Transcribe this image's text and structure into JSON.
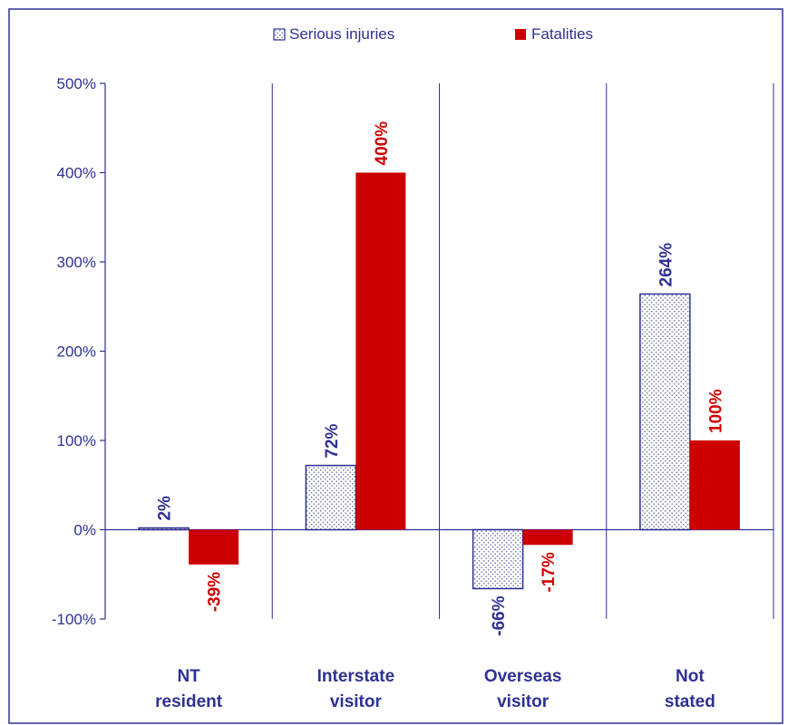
{
  "chart_data": {
    "type": "bar",
    "categories": [
      [
        "NT",
        "resident"
      ],
      [
        "Interstate",
        "visitor"
      ],
      [
        "Overseas",
        "visitor"
      ],
      [
        "Not",
        "stated"
      ]
    ],
    "series": [
      {
        "name": "Serious injuries",
        "values": [
          2,
          72,
          -66,
          264
        ],
        "labels": [
          "2%",
          "72%",
          "-66%",
          "264%"
        ]
      },
      {
        "name": "Fatalities",
        "values": [
          -39,
          400,
          -17,
          100
        ],
        "labels": [
          "-39%",
          "400%",
          "-17%",
          "100%"
        ]
      }
    ],
    "yticks": [
      {
        "value": 500,
        "label": "500%"
      },
      {
        "value": 400,
        "label": "400%"
      },
      {
        "value": 300,
        "label": "300%"
      },
      {
        "value": 200,
        "label": "200%"
      },
      {
        "value": 100,
        "label": "100%"
      },
      {
        "value": 0,
        "label": "0%"
      },
      {
        "value": -100,
        "label": "-100%"
      }
    ],
    "ylim": [
      -100,
      500
    ],
    "legend_position": "top",
    "colors": {
      "axis": "#2e3192",
      "serious": "#2e3192",
      "fatal": "#cc0000",
      "fatal_label": "#cc0000",
      "serious_label": "#2e3192"
    }
  }
}
